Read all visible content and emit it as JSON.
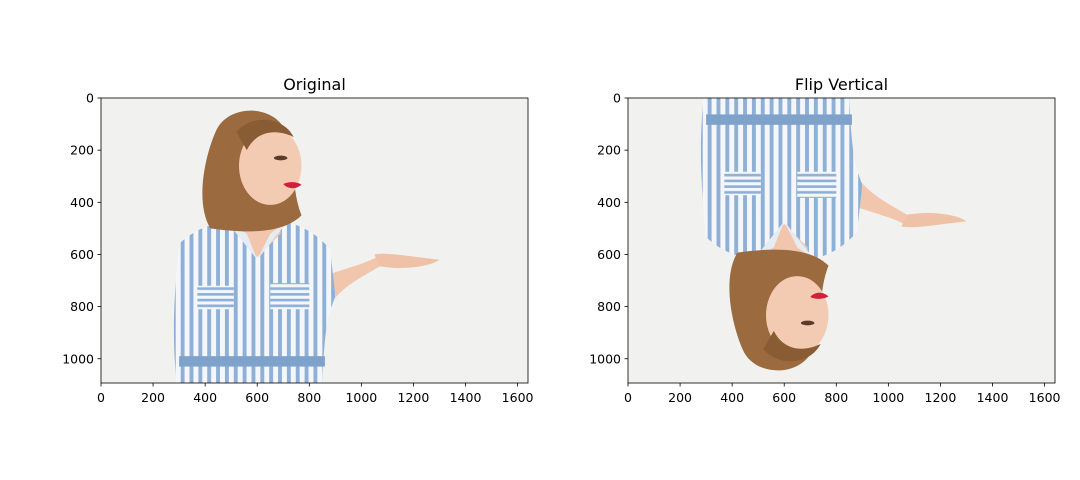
{
  "chart_data": [
    {
      "type": "image",
      "title": "Original",
      "orientation": "upright",
      "xlim": [
        0,
        1640
      ],
      "ylim": [
        1093,
        0
      ],
      "x_ticks": [
        "0",
        "200",
        "400",
        "600",
        "800",
        "1000",
        "1200",
        "1400",
        "1600"
      ],
      "y_ticks": [
        "0",
        "200",
        "400",
        "600",
        "800",
        "1000"
      ],
      "x_tick_values": [
        0,
        200,
        400,
        600,
        800,
        1000,
        1200,
        1400,
        1600
      ],
      "y_tick_values": [
        0,
        200,
        400,
        600,
        800,
        1000
      ],
      "grid": false
    },
    {
      "type": "image",
      "title": "Flip Vertical",
      "orientation": "flipped-vertical",
      "xlim": [
        0,
        1640
      ],
      "ylim": [
        1093,
        0
      ],
      "x_ticks": [
        "0",
        "200",
        "400",
        "600",
        "800",
        "1000",
        "1200",
        "1400",
        "1600"
      ],
      "y_ticks": [
        "0",
        "200",
        "400",
        "600",
        "800",
        "1000"
      ],
      "x_tick_values": [
        0,
        200,
        400,
        600,
        800,
        1000,
        1200,
        1400,
        1600
      ],
      "y_tick_values": [
        0,
        200,
        400,
        600,
        800,
        1000
      ],
      "grid": false
    }
  ],
  "colors": {
    "background": "#f1f2f0",
    "hair": "#9b6a3e",
    "hair_dark": "#6e4626",
    "skin": "#f1c6ad",
    "stripe_blue": "#8fb0d6",
    "stripe_white": "#f4f6f9",
    "lips": "#d21f3c"
  }
}
